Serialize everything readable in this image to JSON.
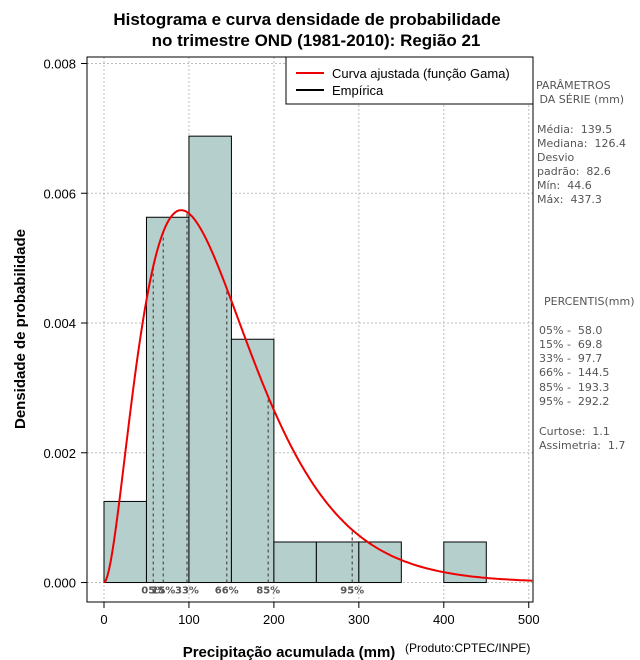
{
  "chart_data": {
    "type": "histogram",
    "title_lines": [
      "Histograma e curva densidade de probabilidade",
      "no trimestre OND (1981-2010): Região 21"
    ],
    "xlabel": "Precipitação acumulada (mm)",
    "ylabel": "Densidade de probabilidade",
    "credit": "(Produto:CPTEC/INPE)",
    "xlim": [
      -20,
      505
    ],
    "ylim": [
      -0.0003,
      0.0081
    ],
    "xticks": [
      0,
      100,
      200,
      300,
      400,
      500
    ],
    "yticks": [
      0.0,
      0.002,
      0.004,
      0.006,
      0.008
    ],
    "ytick_labels": [
      "0.000",
      "0.002",
      "0.004",
      "0.006",
      "0.008"
    ],
    "grid": true,
    "bins": [
      {
        "x0": 0,
        "x1": 50,
        "density": 0.00125
      },
      {
        "x0": 50,
        "x1": 100,
        "density": 0.00563
      },
      {
        "x0": 100,
        "x1": 150,
        "density": 0.00688
      },
      {
        "x0": 150,
        "x1": 200,
        "density": 0.00375
      },
      {
        "x0": 200,
        "x1": 250,
        "density": 0.000625
      },
      {
        "x0": 250,
        "x1": 300,
        "density": 0.000625
      },
      {
        "x0": 300,
        "x1": 350,
        "density": 0.000625
      },
      {
        "x0": 350,
        "x1": 400,
        "density": 0
      },
      {
        "x0": 400,
        "x1": 450,
        "density": 0.000625
      }
    ],
    "fitted_curve": {
      "distribution": "gamma",
      "shape": 2.867,
      "scale": 48.67,
      "color": "#ee0000"
    },
    "percentile_lines": [
      {
        "label": "05%",
        "value": 58.0
      },
      {
        "label": "15%",
        "value": 69.8
      },
      {
        "label": "33%",
        "value": 97.7
      },
      {
        "label": "66%",
        "value": 144.5
      },
      {
        "label": "85%",
        "value": 193.3
      },
      {
        "label": "95%",
        "value": 292.2
      }
    ],
    "legend": {
      "position": "top-right",
      "entries": [
        {
          "label": "Curva ajustada (função Gama)",
          "color": "#ee0000"
        },
        {
          "label": "Empírica",
          "color": "#000000"
        }
      ]
    },
    "colors": {
      "bar_fill": "#b5cfcd",
      "bar_stroke": "#000000",
      "percentile_line": "#555555",
      "grid": "#bdbdbd"
    }
  },
  "sidebar": {
    "params_title": [
      "PARÂMETROS",
      " DA SÉRIE (mm)"
    ],
    "params": [
      "Média:  139.5",
      "Mediana:  126.4",
      "Desvio",
      "padrão:  82.6",
      "Mín:  44.6",
      "Máx:  437.3"
    ],
    "percentis_title": "PERCENTIS(mm)",
    "percentis": [
      "05% -  58.0",
      "15% -  69.8",
      "33% -  97.7",
      "66% -  144.5",
      "85% -  193.3",
      "95% -  292.2"
    ],
    "stats": [
      "Curtose:  1.1",
      "Assimetria:  1.7"
    ]
  }
}
